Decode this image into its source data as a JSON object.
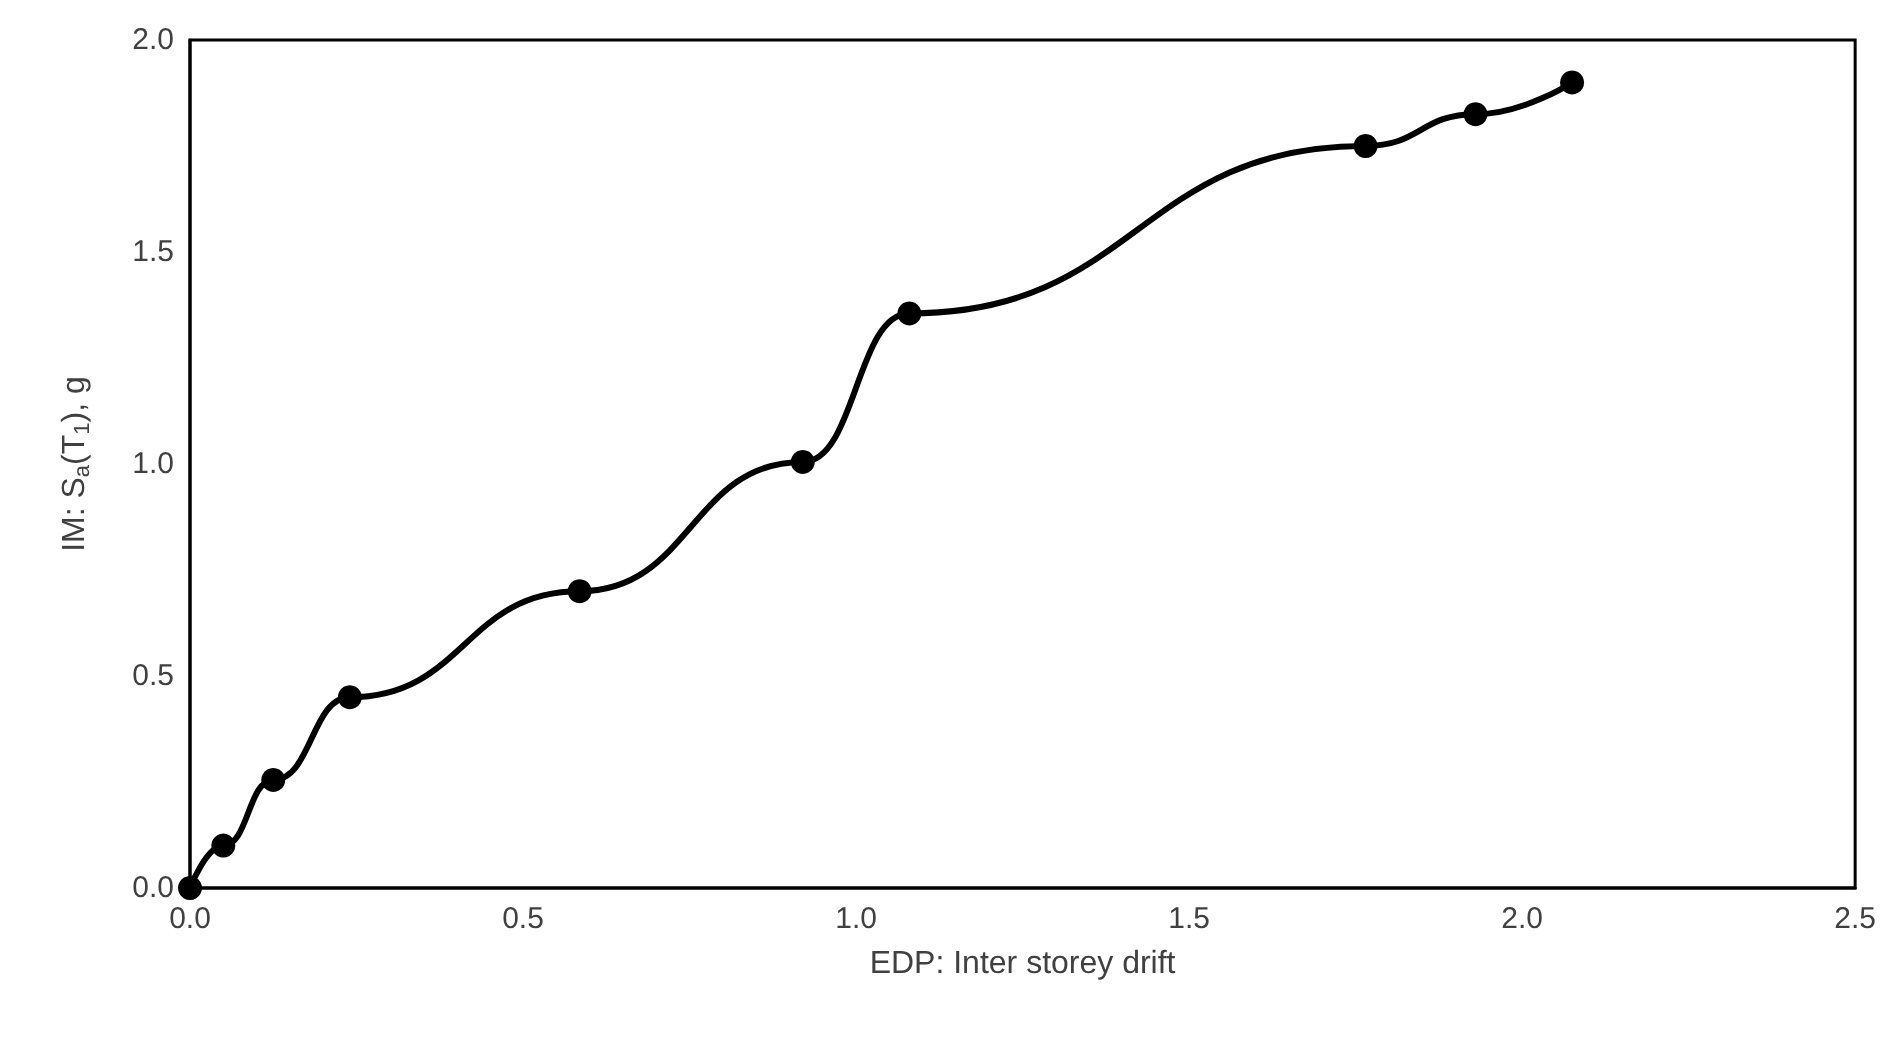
{
  "chart_data": {
    "type": "line",
    "xlabel": "EDP: Inter storey drift",
    "ylabel": "IM: S$_{a}$(T$_{1}$), g",
    "x": [
      0,
      0.05,
      0.125,
      0.24,
      0.585,
      0.92,
      1.08,
      1.765,
      1.93,
      2.075
    ],
    "series": [
      {
        "color": "#000000",
        "values": [
          0,
          0.1,
          0.255,
          0.45,
          0.7,
          1.005,
          1.355,
          1.75,
          1.825,
          1.9
        ]
      }
    ],
    "xlim": [
      0,
      2.5
    ],
    "xticks": [
      {
        "value": 0,
        "label": "0.0"
      },
      {
        "value": 0.5,
        "label": "0.5"
      },
      {
        "value": 1,
        "label": "1.0"
      },
      {
        "value": 1.5,
        "label": "1.5"
      },
      {
        "value": 2,
        "label": "2.0"
      },
      {
        "value": 2.5,
        "label": "2.5"
      }
    ],
    "ylim": [
      0,
      2
    ],
    "yticks": [
      {
        "value": 0,
        "label": "0.0"
      },
      {
        "value": 0.5,
        "label": "0.5"
      },
      {
        "value": 1,
        "label": "1.0"
      },
      {
        "value": 1.5,
        "label": "1.5"
      },
      {
        "value": 2,
        "label": "2.0"
      }
    ],
    "grid": false,
    "marker": "circle",
    "line_style": "solid"
  }
}
